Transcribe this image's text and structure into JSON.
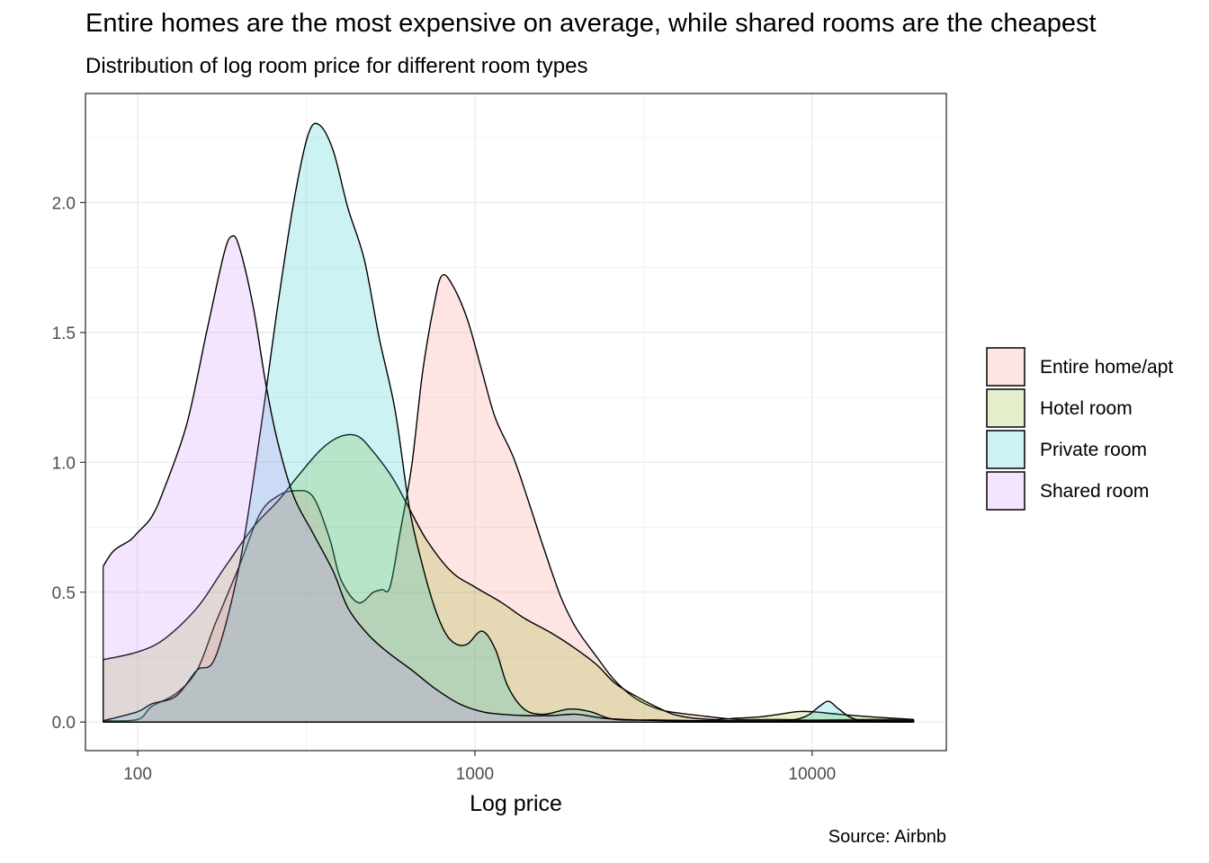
{
  "chart_data": {
    "type": "area",
    "title": "Entire homes are the most expensive on average, while shared rooms are the cheapest",
    "subtitle": "Distribution of log room price for different room types",
    "caption": "Source: Airbnb",
    "xlabel": "Log price",
    "ylabel": "",
    "x_scale": "log10",
    "xlim": [
      70,
      25000
    ],
    "ylim": [
      -0.11,
      2.42
    ],
    "x_ticks": [
      100,
      1000,
      10000
    ],
    "x_tick_labels": [
      "100",
      "1000",
      "10000"
    ],
    "y_ticks": [
      0.0,
      0.5,
      1.0,
      1.5,
      2.0
    ],
    "y_tick_labels": [
      "0.0",
      "0.5",
      "1.0",
      "1.5",
      "2.0"
    ],
    "grid": true,
    "legend_position": "right",
    "series": [
      {
        "name": "Entire home/apt",
        "color": "#F8766D",
        "points": [
          [
            79,
            0.005
          ],
          [
            100,
            0.01
          ],
          [
            110,
            0.06
          ],
          [
            130,
            0.11
          ],
          [
            150,
            0.2
          ],
          [
            170,
            0.38
          ],
          [
            200,
            0.6
          ],
          [
            230,
            0.8
          ],
          [
            260,
            0.87
          ],
          [
            290,
            0.89
          ],
          [
            330,
            0.87
          ],
          [
            370,
            0.71
          ],
          [
            400,
            0.55
          ],
          [
            450,
            0.46
          ],
          [
            500,
            0.5
          ],
          [
            530,
            0.51
          ],
          [
            560,
            0.52
          ],
          [
            600,
            0.73
          ],
          [
            650,
            0.99
          ],
          [
            700,
            1.35
          ],
          [
            760,
            1.62
          ],
          [
            800,
            1.72
          ],
          [
            860,
            1.68
          ],
          [
            950,
            1.55
          ],
          [
            1050,
            1.35
          ],
          [
            1150,
            1.17
          ],
          [
            1300,
            1.02
          ],
          [
            1450,
            0.84
          ],
          [
            1600,
            0.67
          ],
          [
            1800,
            0.48
          ],
          [
            2000,
            0.36
          ],
          [
            2300,
            0.25
          ],
          [
            2600,
            0.16
          ],
          [
            3000,
            0.09
          ],
          [
            3500,
            0.05
          ],
          [
            4000,
            0.035
          ],
          [
            5000,
            0.02
          ],
          [
            6000,
            0.01
          ],
          [
            8000,
            0.01
          ],
          [
            10000,
            0.008
          ],
          [
            15000,
            0.01
          ],
          [
            20000,
            0.01
          ]
        ]
      },
      {
        "name": "Hotel room",
        "color": "#7CAE00",
        "points": [
          [
            79,
            0.24
          ],
          [
            100,
            0.27
          ],
          [
            120,
            0.32
          ],
          [
            150,
            0.44
          ],
          [
            180,
            0.59
          ],
          [
            220,
            0.75
          ],
          [
            260,
            0.85
          ],
          [
            300,
            0.95
          ],
          [
            350,
            1.05
          ],
          [
            400,
            1.1
          ],
          [
            450,
            1.1
          ],
          [
            500,
            1.04
          ],
          [
            570,
            0.94
          ],
          [
            640,
            0.82
          ],
          [
            720,
            0.7
          ],
          [
            850,
            0.58
          ],
          [
            1000,
            0.52
          ],
          [
            1200,
            0.46
          ],
          [
            1400,
            0.4
          ],
          [
            1700,
            0.34
          ],
          [
            2000,
            0.28
          ],
          [
            2300,
            0.22
          ],
          [
            2600,
            0.15
          ],
          [
            3000,
            0.1
          ],
          [
            3500,
            0.055
          ],
          [
            4000,
            0.025
          ],
          [
            5000,
            0.01
          ],
          [
            6000,
            0.015
          ],
          [
            7000,
            0.02
          ],
          [
            8000,
            0.03
          ],
          [
            9000,
            0.04
          ],
          [
            10000,
            0.04
          ],
          [
            12000,
            0.03
          ],
          [
            15000,
            0.02
          ],
          [
            20000,
            0.01
          ]
        ]
      },
      {
        "name": "Private room",
        "color": "#00BFC4",
        "points": [
          [
            79,
            0.005
          ],
          [
            100,
            0.04
          ],
          [
            110,
            0.07
          ],
          [
            130,
            0.1
          ],
          [
            150,
            0.2
          ],
          [
            170,
            0.25
          ],
          [
            200,
            0.6
          ],
          [
            230,
            1.1
          ],
          [
            260,
            1.6
          ],
          [
            290,
            2.0
          ],
          [
            320,
            2.26
          ],
          [
            345,
            2.3
          ],
          [
            380,
            2.2
          ],
          [
            420,
            1.98
          ],
          [
            470,
            1.78
          ],
          [
            520,
            1.48
          ],
          [
            580,
            1.2
          ],
          [
            640,
            0.82
          ],
          [
            700,
            0.6
          ],
          [
            760,
            0.44
          ],
          [
            820,
            0.34
          ],
          [
            880,
            0.3
          ],
          [
            950,
            0.3
          ],
          [
            1050,
            0.35
          ],
          [
            1150,
            0.28
          ],
          [
            1250,
            0.14
          ],
          [
            1400,
            0.05
          ],
          [
            1600,
            0.03
          ],
          [
            1900,
            0.05
          ],
          [
            2200,
            0.04
          ],
          [
            2600,
            0.01
          ],
          [
            3500,
            0.008
          ],
          [
            5000,
            0.005
          ],
          [
            8000,
            0.005
          ],
          [
            9500,
            0.02
          ],
          [
            10500,
            0.06
          ],
          [
            11200,
            0.08
          ],
          [
            12000,
            0.05
          ],
          [
            13500,
            0.01
          ],
          [
            17000,
            0.005
          ],
          [
            20000,
            0.005
          ]
        ]
      },
      {
        "name": "Shared room",
        "color": "#C77CFF",
        "points": [
          [
            79,
            0.6
          ],
          [
            85,
            0.66
          ],
          [
            95,
            0.7
          ],
          [
            100,
            0.73
          ],
          [
            110,
            0.79
          ],
          [
            120,
            0.9
          ],
          [
            140,
            1.15
          ],
          [
            160,
            1.5
          ],
          [
            180,
            1.8
          ],
          [
            190,
            1.87
          ],
          [
            200,
            1.83
          ],
          [
            220,
            1.6
          ],
          [
            240,
            1.3
          ],
          [
            260,
            1.08
          ],
          [
            290,
            0.87
          ],
          [
            330,
            0.73
          ],
          [
            380,
            0.58
          ],
          [
            420,
            0.44
          ],
          [
            480,
            0.34
          ],
          [
            550,
            0.27
          ],
          [
            650,
            0.2
          ],
          [
            760,
            0.13
          ],
          [
            900,
            0.07
          ],
          [
            1050,
            0.04
          ],
          [
            1200,
            0.03
          ],
          [
            1400,
            0.025
          ],
          [
            1700,
            0.025
          ],
          [
            2000,
            0.03
          ],
          [
            2400,
            0.015
          ],
          [
            3000,
            0.008
          ],
          [
            4000,
            0.005
          ],
          [
            6000,
            0.005
          ],
          [
            10000,
            0.005
          ],
          [
            15000,
            0.005
          ],
          [
            20000,
            0.005
          ]
        ]
      }
    ]
  }
}
